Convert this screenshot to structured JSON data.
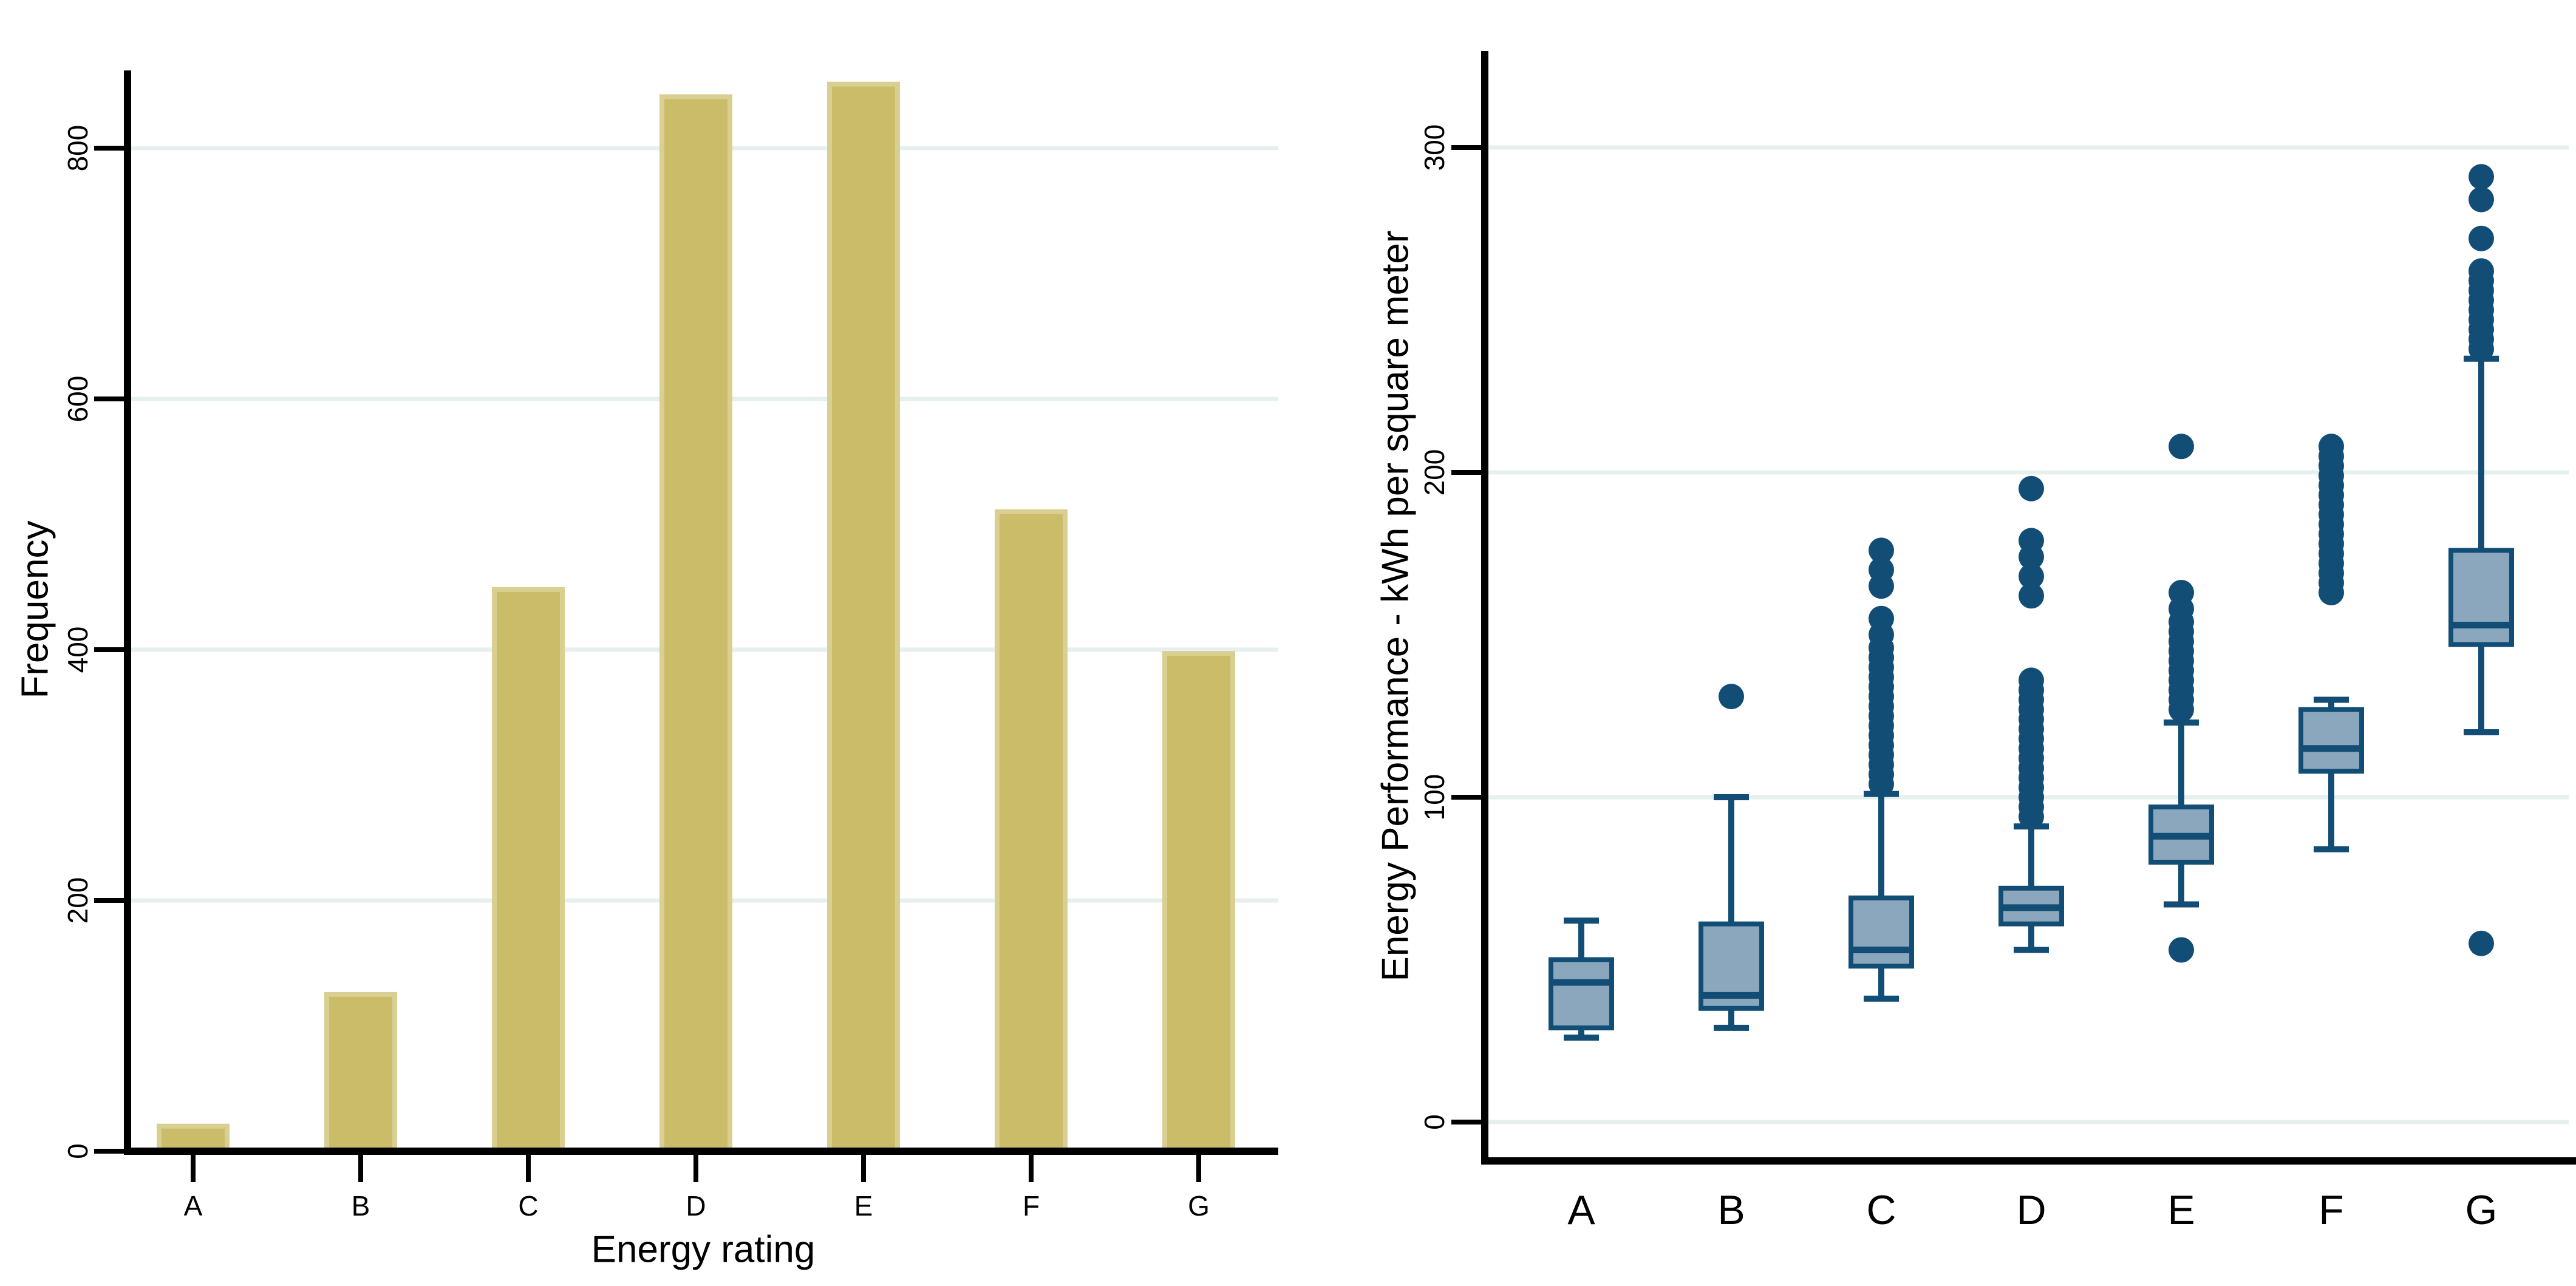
{
  "page": {
    "background": "#ffffff"
  },
  "chart_data": [
    {
      "type": "bar",
      "title": "",
      "xlabel": "Energy rating",
      "ylabel": "Frequency",
      "categories": [
        "A",
        "B",
        "C",
        "D",
        "E",
        "F",
        "G"
      ],
      "values": [
        20,
        125,
        448,
        841,
        851,
        510,
        397
      ],
      "yticks": [
        0,
        200,
        400,
        600,
        800
      ],
      "ylim": [
        0,
        862
      ],
      "grid": true,
      "legend_position": "none",
      "colors": {
        "bar_fill": "#cabc68",
        "bar_stroke": "#d9cf91",
        "grid": "#e6f1ef",
        "axis": "#000000",
        "text": "#000000"
      }
    },
    {
      "type": "box",
      "title": "",
      "xlabel": "",
      "ylabel": "Energy Performance - kWh per square meter",
      "categories": [
        "A",
        "B",
        "C",
        "D",
        "E",
        "F",
        "G"
      ],
      "yticks": [
        0,
        100,
        200,
        300
      ],
      "ylim": [
        -12,
        330
      ],
      "grid": true,
      "legend_position": "none",
      "colors": {
        "box_fill": "#8aa7bd",
        "line": "#114d75",
        "grid": "#e6f1ef",
        "axis": "#000000",
        "text": "#000000"
      },
      "series": [
        {
          "category": "A",
          "low": 26,
          "q1": 29,
          "median": 43,
          "q3": 50,
          "high": 62,
          "outliers": []
        },
        {
          "category": "B",
          "low": 29,
          "q1": 35,
          "median": 39,
          "q3": 61,
          "high": 100,
          "outliers": [
            131
          ]
        },
        {
          "category": "C",
          "low": 38,
          "q1": 48,
          "median": 53,
          "q3": 69,
          "high": 101,
          "outliers": [
            104,
            107,
            110,
            113,
            116,
            119,
            122,
            125,
            128,
            131,
            134,
            137,
            140,
            143,
            146,
            150,
            155,
            165,
            170,
            176
          ]
        },
        {
          "category": "D",
          "low": 53,
          "q1": 61,
          "median": 66,
          "q3": 72,
          "high": 91,
          "outliers": [
            94,
            97,
            100,
            103,
            106,
            109,
            112,
            115,
            118,
            121,
            124,
            127,
            130,
            133,
            136,
            162,
            168,
            174,
            179,
            195
          ]
        },
        {
          "category": "E",
          "low": 67,
          "q1": 80,
          "median": 88,
          "q3": 97,
          "high": 123,
          "outliers": [
            53,
            127,
            130,
            133,
            136,
            139,
            142,
            145,
            148,
            151,
            154,
            158,
            163,
            208
          ]
        },
        {
          "category": "F",
          "low": 84,
          "q1": 108,
          "median": 115,
          "q3": 127,
          "high": 130,
          "outliers": [
            163,
            166,
            169,
            172,
            175,
            178,
            181,
            184,
            187,
            190,
            193,
            196,
            199,
            202,
            205,
            208
          ]
        },
        {
          "category": "G",
          "low": 120,
          "q1": 147,
          "median": 153,
          "q3": 176,
          "high": 235,
          "outliers": [
            55,
            238,
            241,
            244,
            247,
            250,
            253,
            256,
            259,
            262,
            272,
            284,
            291
          ]
        }
      ]
    }
  ]
}
